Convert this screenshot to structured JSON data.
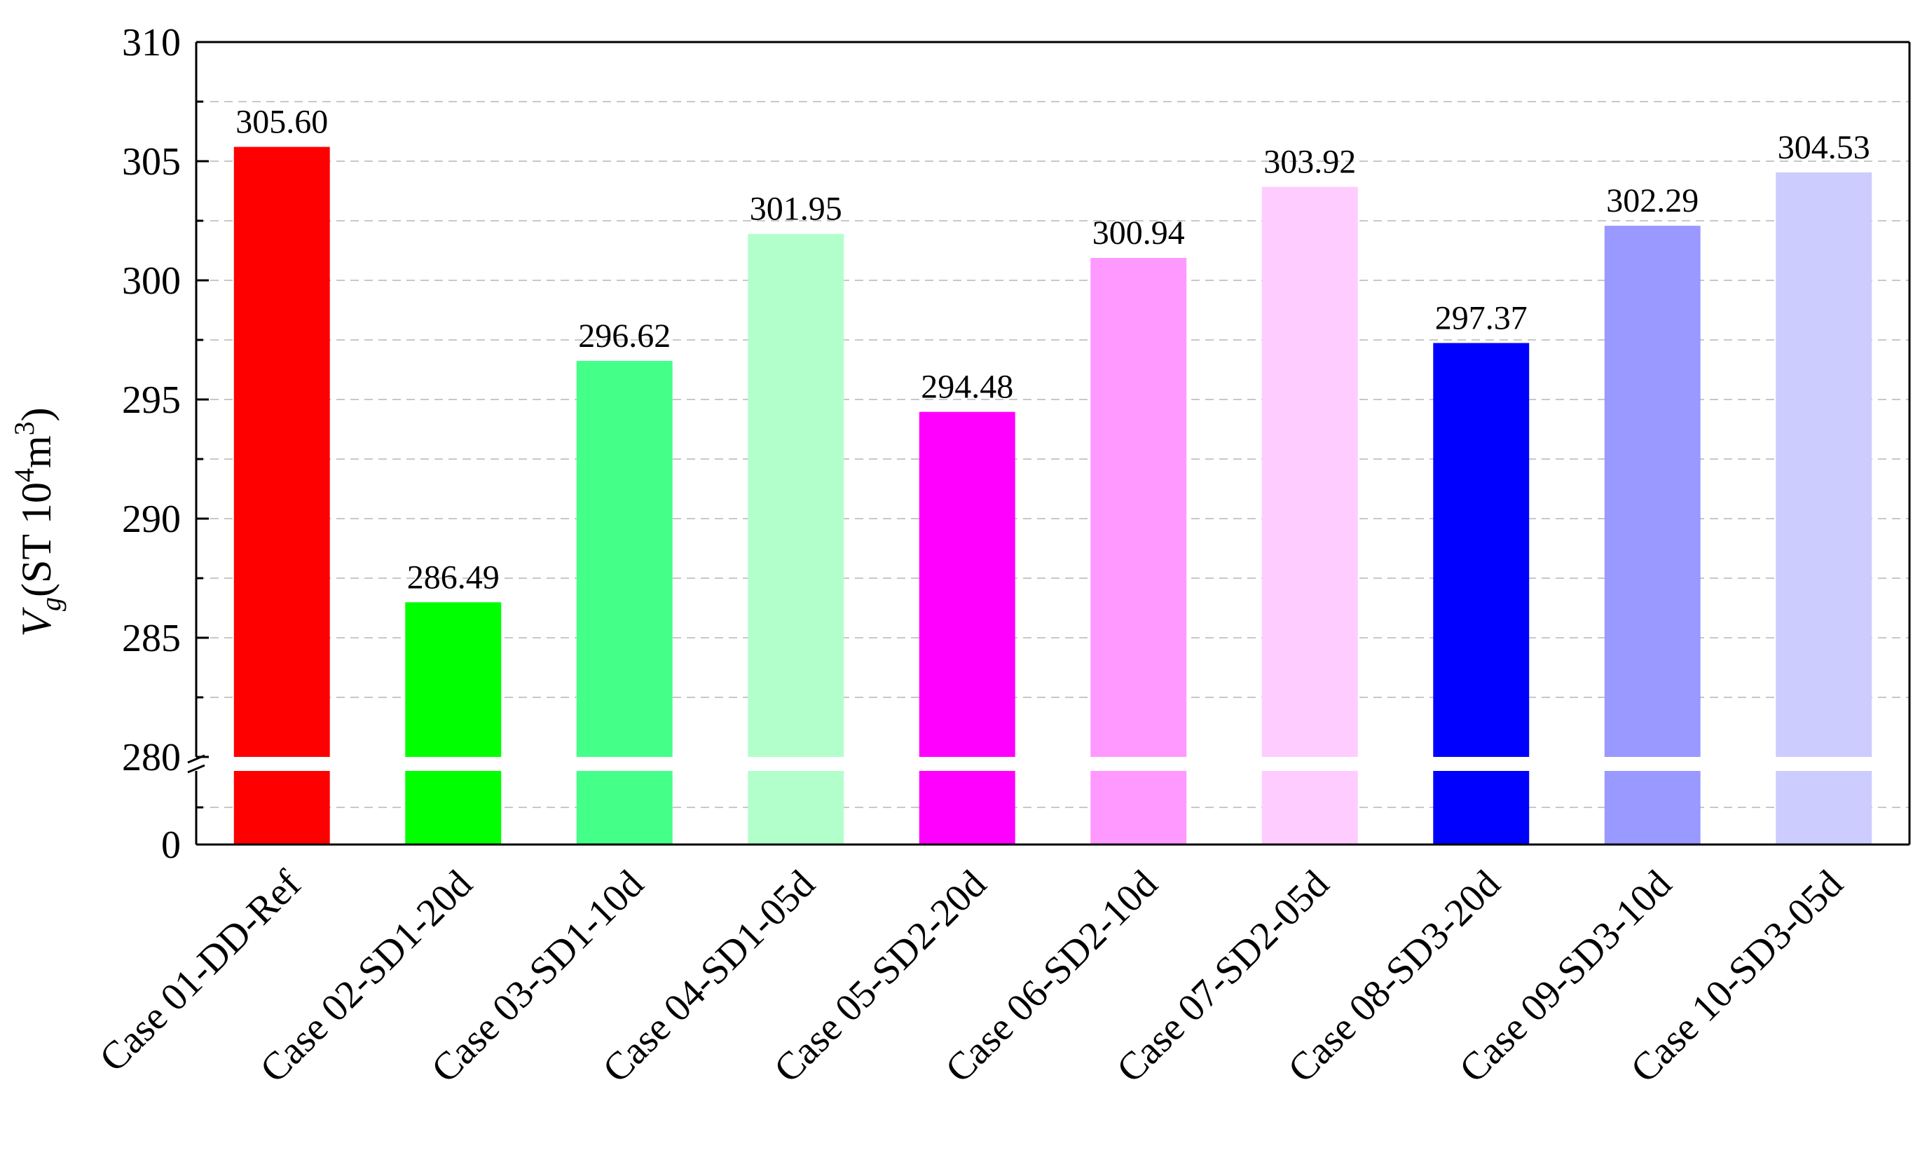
{
  "chart_data": {
    "type": "bar",
    "title": "",
    "xlabel": "",
    "ylabel": {
      "symbol": "V",
      "subscript": "g",
      "unit_prefix": "(ST 10",
      "exp1": "4",
      "unit_mid": "m",
      "exp2": "3",
      "unit_suffix": ")"
    },
    "y_axis_break": {
      "lower_range": [
        0,
        280
      ],
      "upper_range": [
        280,
        310
      ]
    },
    "ylim": [
      0,
      310
    ],
    "upper_ticks": [
      280,
      285,
      290,
      295,
      300,
      305,
      310
    ],
    "upper_tick_labels": [
      "280",
      "285",
      "290",
      "295",
      "300",
      "305",
      "310"
    ],
    "lower_ticks": [
      0
    ],
    "lower_tick_labels": [
      "0"
    ],
    "grid": true,
    "categories": [
      "Case 01-DD-Ref",
      "Case 02-SD1-20d",
      "Case 03-SD1-10d",
      "Case 04-SD1-05d",
      "Case 05-SD2-20d",
      "Case 06-SD2-10d",
      "Case 07-SD2-05d",
      "Case 08-SD3-20d",
      "Case 09-SD3-10d",
      "Case 10-SD3-05d"
    ],
    "values": [
      305.6,
      286.49,
      296.62,
      301.95,
      294.48,
      300.94,
      303.92,
      297.37,
      302.29,
      304.53
    ],
    "value_labels": [
      "305.60",
      "286.49",
      "296.62",
      "301.95",
      "294.48",
      "300.94",
      "303.92",
      "297.37",
      "302.29",
      "304.53"
    ],
    "colors": [
      "#ff0000",
      "#00ff00",
      "#44ff88",
      "#b3ffcc",
      "#ff00ff",
      "#ff99ff",
      "#ffccff",
      "#0000ff",
      "#9999ff",
      "#ccccff"
    ]
  }
}
